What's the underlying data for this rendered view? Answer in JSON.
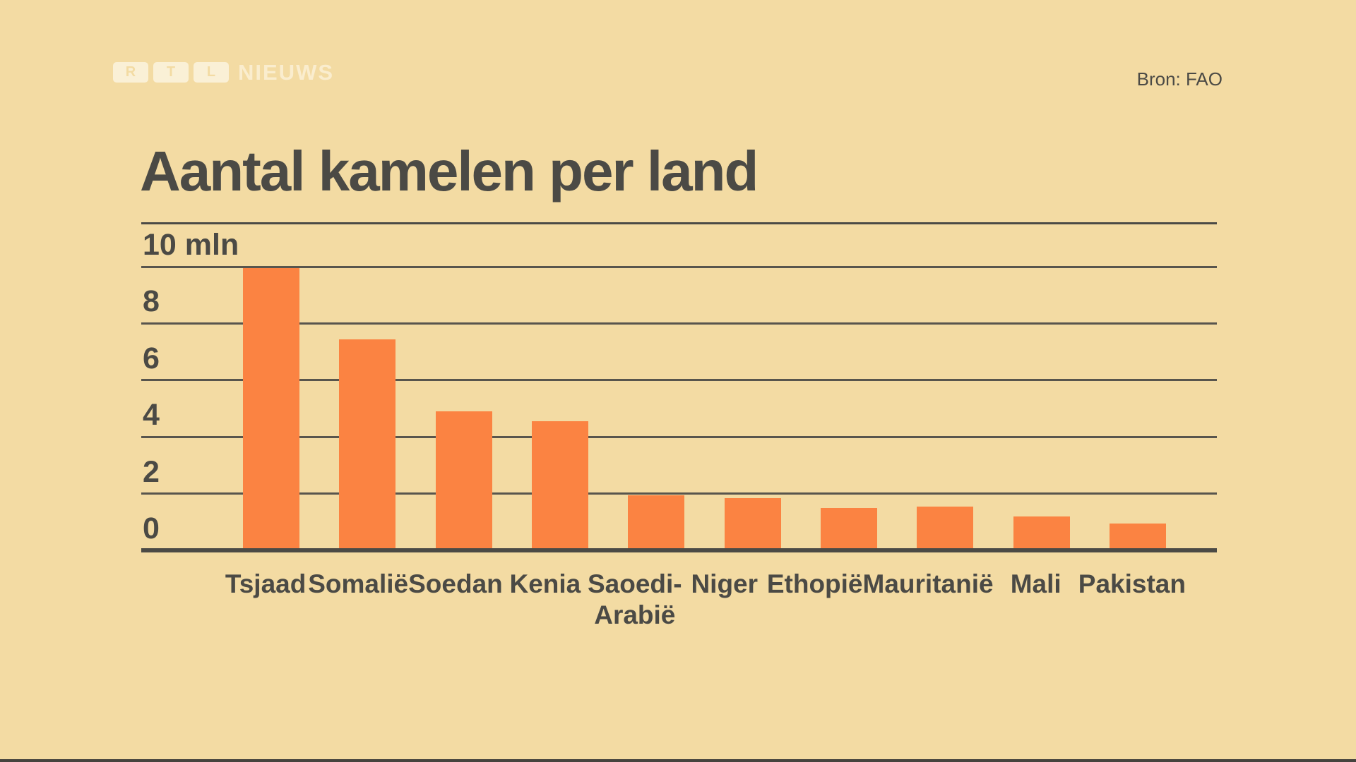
{
  "page": {
    "background": "#f3dba3",
    "ink_color": "#4b4a45",
    "bottom_strip_color": "#45433e"
  },
  "header": {
    "logo": {
      "blocks": [
        "R",
        "T",
        "L"
      ],
      "wordmark": "NIEUWS"
    },
    "source": "Bron: FAO"
  },
  "chart_data": {
    "type": "bar",
    "title": "Aantal kamelen per land",
    "categories": [
      "Tsjaad",
      "Somalië",
      "Soedan",
      "Kenia",
      "Saoedi-\nArabië",
      "Niger",
      "Ethopië",
      "Mauritanië",
      "Mali",
      "Pakistan"
    ],
    "values": [
      9.95,
      7.45,
      4.9,
      4.55,
      1.95,
      1.85,
      1.5,
      1.55,
      1.2,
      0.95
    ],
    "unit": "mln",
    "xlabel": "",
    "ylabel": "",
    "ylim": [
      0,
      10
    ],
    "yticks": [
      {
        "value": 10,
        "label": "10 mln"
      },
      {
        "value": 8,
        "label": "8"
      },
      {
        "value": 6,
        "label": "6"
      },
      {
        "value": 4,
        "label": "4"
      },
      {
        "value": 2,
        "label": "2"
      },
      {
        "value": 0,
        "label": "0"
      }
    ],
    "grid": true,
    "legend": "none",
    "bar_color": "#fb8342"
  }
}
